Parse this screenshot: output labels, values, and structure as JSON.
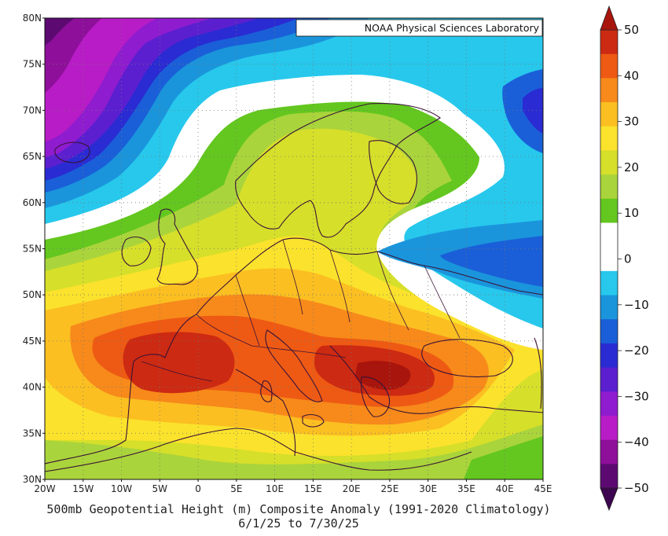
{
  "credit": "NOAA Physical Sciences Laboratory",
  "caption": {
    "line1": "500mb Geopotential Height (m) Composite Anomaly (1991-2020 Climatology)",
    "line2": "6/1/25  to 7/30/25"
  },
  "lat_labels": [
    "30N",
    "35N",
    "40N",
    "45N",
    "50N",
    "55N",
    "60N",
    "65N",
    "70N",
    "75N",
    "80N"
  ],
  "lon_labels": [
    "20W",
    "15W",
    "10W",
    "5W",
    "0",
    "5E",
    "10E",
    "15E",
    "20E",
    "25E",
    "30E",
    "35E",
    "40E",
    "45E"
  ],
  "colorbar": {
    "tick_labels": [
      "50",
      "40",
      "30",
      "20",
      "10",
      "0",
      "-10",
      "-20",
      "-30",
      "-40",
      "-50"
    ],
    "bins": [
      {
        "range": "40 to 50",
        "color": "#cc2a12"
      },
      {
        "range": "35 to 40",
        "color": "#ee5a14"
      },
      {
        "range": "30 to 35",
        "color": "#f78a1a"
      },
      {
        "range": "25 to 30",
        "color": "#fbbf22"
      },
      {
        "range": "20 to 25",
        "color": "#fbe22c"
      },
      {
        "range": "15 to 20",
        "color": "#d6df2a"
      },
      {
        "range": "10 to 15",
        "color": "#aad43b"
      },
      {
        "range": "5 to 10",
        "color": "#63c71f"
      },
      {
        "range": "0 to 5",
        "color": "#ffffff"
      },
      {
        "range": "-5 to 0",
        "color": "#ffffff"
      },
      {
        "range": "-10 to -5",
        "color": "#27c8ec"
      },
      {
        "range": "-15 to -10",
        "color": "#1a95dc"
      },
      {
        "range": "-20 to -15",
        "color": "#1a5fd8"
      },
      {
        "range": "-25 to -20",
        "color": "#2a2bd2"
      },
      {
        "range": "-30 to -25",
        "color": "#5b1fd0"
      },
      {
        "range": "-35 to -30",
        "color": "#8f1ccf"
      },
      {
        "range": "-40 to -35",
        "color": "#b81cc6"
      },
      {
        "range": "-45 to -40",
        "color": "#8e0f9a"
      },
      {
        "range": "-50 to -45",
        "color": "#5c0a72"
      }
    ],
    "arrow_top_color": "#a8150d",
    "arrow_bottom_color": "#3d054f"
  },
  "map": {
    "projection": "lat-lon",
    "lon_range": [
      -20,
      45
    ],
    "lat_range": [
      30,
      80
    ],
    "features": {
      "max_positive_center": "Balkans / Greece (about 25E, 42N)",
      "secondary_positive_center": "Iberia / Western Mediterranean",
      "negative_north": "North Atlantic / Greenland (-40 to -50)",
      "negative_east": "Western Russia (-10 to -20)"
    }
  }
}
